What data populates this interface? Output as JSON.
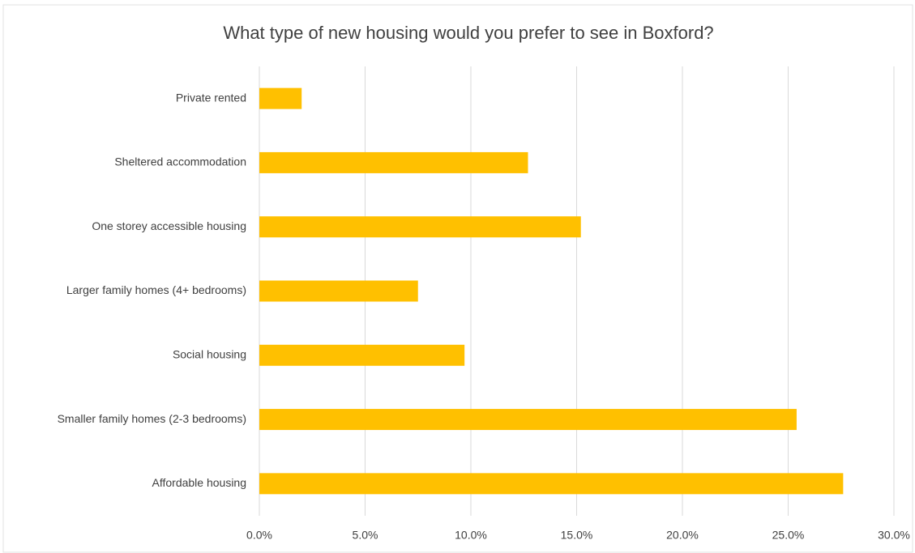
{
  "chart_data": {
    "type": "bar",
    "orientation": "horizontal",
    "title": "What type of new housing would you prefer to see in Boxford?",
    "categories": [
      "Private rented",
      "Sheltered accommodation",
      "One storey accessible housing",
      "Larger family homes (4+ bedrooms)",
      "Social housing",
      "Smaller family homes (2-3 bedrooms)",
      "Affordable housing"
    ],
    "values": [
      2.0,
      12.7,
      15.2,
      7.5,
      9.7,
      25.4,
      27.6
    ],
    "color": "#ffc000",
    "xlim": [
      0,
      30
    ],
    "xticks": [
      {
        "value": 0,
        "label": "0.0%"
      },
      {
        "value": 5,
        "label": "5.0%"
      },
      {
        "value": 10,
        "label": "10.0%"
      },
      {
        "value": 15,
        "label": "15.0%"
      },
      {
        "value": 20,
        "label": "20.0%"
      },
      {
        "value": 25,
        "label": "25.0%"
      },
      {
        "value": 30,
        "label": "30.0%"
      }
    ],
    "grid": true
  }
}
